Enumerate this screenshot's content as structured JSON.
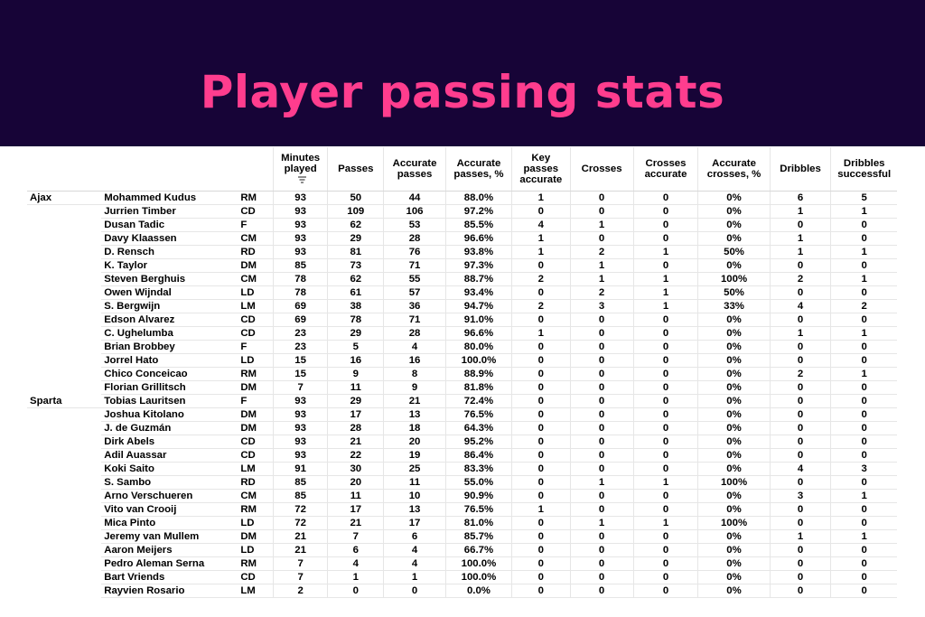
{
  "title": "Player passing stats",
  "chart_data": {
    "type": "table",
    "columns": [
      "Minutes played",
      "Passes",
      "Accurate passes",
      "Accurate passes, %",
      "Key passes accurate",
      "Crosses",
      "Crosses accurate",
      "Accurate crosses, %",
      "Dribbles",
      "Dribbles successful"
    ],
    "header_lines": [
      [
        "Minutes",
        "played"
      ],
      [
        "Passes"
      ],
      [
        "Accurate",
        "passes"
      ],
      [
        "Accurate",
        "passes, %"
      ],
      [
        "Key",
        "passes",
        "accurate"
      ],
      [
        "Crosses"
      ],
      [
        "Crosses",
        "accurate"
      ],
      [
        "Accurate",
        "crosses, %"
      ],
      [
        "Dribbles"
      ],
      [
        "Dribbles",
        "successful"
      ]
    ],
    "sorted_column": "Minutes played",
    "rows": [
      {
        "team": "Ajax",
        "player": "Mohammed Kudus",
        "pos": "RM",
        "values": [
          "93",
          "50",
          "44",
          "88.0%",
          "1",
          "0",
          "0",
          "0%",
          "6",
          "5"
        ]
      },
      {
        "team": "",
        "player": "Jurrien Timber",
        "pos": "CD",
        "values": [
          "93",
          "109",
          "106",
          "97.2%",
          "0",
          "0",
          "0",
          "0%",
          "1",
          "1"
        ]
      },
      {
        "team": "",
        "player": "Dusan Tadic",
        "pos": "F",
        "values": [
          "93",
          "62",
          "53",
          "85.5%",
          "4",
          "1",
          "0",
          "0%",
          "0",
          "0"
        ]
      },
      {
        "team": "",
        "player": "Davy Klaassen",
        "pos": "CM",
        "values": [
          "93",
          "29",
          "28",
          "96.6%",
          "1",
          "0",
          "0",
          "0%",
          "1",
          "0"
        ]
      },
      {
        "team": "",
        "player": "D. Rensch",
        "pos": "RD",
        "values": [
          "93",
          "81",
          "76",
          "93.8%",
          "1",
          "2",
          "1",
          "50%",
          "1",
          "1"
        ]
      },
      {
        "team": "",
        "player": "K. Taylor",
        "pos": "DM",
        "values": [
          "85",
          "73",
          "71",
          "97.3%",
          "0",
          "1",
          "0",
          "0%",
          "0",
          "0"
        ]
      },
      {
        "team": "",
        "player": "Steven Berghuis",
        "pos": "CM",
        "values": [
          "78",
          "62",
          "55",
          "88.7%",
          "2",
          "1",
          "1",
          "100%",
          "2",
          "1"
        ]
      },
      {
        "team": "",
        "player": "Owen Wijndal",
        "pos": "LD",
        "values": [
          "78",
          "61",
          "57",
          "93.4%",
          "0",
          "2",
          "1",
          "50%",
          "0",
          "0"
        ]
      },
      {
        "team": "",
        "player": "S. Bergwijn",
        "pos": "LM",
        "values": [
          "69",
          "38",
          "36",
          "94.7%",
          "2",
          "3",
          "1",
          "33%",
          "4",
          "2"
        ]
      },
      {
        "team": "",
        "player": "Edson Alvarez",
        "pos": "CD",
        "values": [
          "69",
          "78",
          "71",
          "91.0%",
          "0",
          "0",
          "0",
          "0%",
          "0",
          "0"
        ]
      },
      {
        "team": "",
        "player": "C. Ughelumba",
        "pos": "CD",
        "values": [
          "23",
          "29",
          "28",
          "96.6%",
          "1",
          "0",
          "0",
          "0%",
          "1",
          "1"
        ]
      },
      {
        "team": "",
        "player": "Brian Brobbey",
        "pos": "F",
        "values": [
          "23",
          "5",
          "4",
          "80.0%",
          "0",
          "0",
          "0",
          "0%",
          "0",
          "0"
        ]
      },
      {
        "team": "",
        "player": "Jorrel Hato",
        "pos": "LD",
        "values": [
          "15",
          "16",
          "16",
          "100.0%",
          "0",
          "0",
          "0",
          "0%",
          "0",
          "0"
        ]
      },
      {
        "team": "",
        "player": "Chico Conceicao",
        "pos": "RM",
        "values": [
          "15",
          "9",
          "8",
          "88.9%",
          "0",
          "0",
          "0",
          "0%",
          "2",
          "1"
        ]
      },
      {
        "team": "",
        "player": "Florian Grillitsch",
        "pos": "DM",
        "values": [
          "7",
          "11",
          "9",
          "81.8%",
          "0",
          "0",
          "0",
          "0%",
          "0",
          "0"
        ]
      },
      {
        "team": "Sparta",
        "player": "Tobias Lauritsen",
        "pos": "F",
        "values": [
          "93",
          "29",
          "21",
          "72.4%",
          "0",
          "0",
          "0",
          "0%",
          "0",
          "0"
        ]
      },
      {
        "team": "",
        "player": "Joshua Kitolano",
        "pos": "DM",
        "values": [
          "93",
          "17",
          "13",
          "76.5%",
          "0",
          "0",
          "0",
          "0%",
          "0",
          "0"
        ]
      },
      {
        "team": "",
        "player": "J. de Guzmán",
        "pos": "DM",
        "values": [
          "93",
          "28",
          "18",
          "64.3%",
          "0",
          "0",
          "0",
          "0%",
          "0",
          "0"
        ]
      },
      {
        "team": "",
        "player": "Dirk Abels",
        "pos": "CD",
        "values": [
          "93",
          "21",
          "20",
          "95.2%",
          "0",
          "0",
          "0",
          "0%",
          "0",
          "0"
        ]
      },
      {
        "team": "",
        "player": "Adil Auassar",
        "pos": "CD",
        "values": [
          "93",
          "22",
          "19",
          "86.4%",
          "0",
          "0",
          "0",
          "0%",
          "0",
          "0"
        ]
      },
      {
        "team": "",
        "player": "Koki Saito",
        "pos": "LM",
        "values": [
          "91",
          "30",
          "25",
          "83.3%",
          "0",
          "0",
          "0",
          "0%",
          "4",
          "3"
        ]
      },
      {
        "team": "",
        "player": "S. Sambo",
        "pos": "RD",
        "values": [
          "85",
          "20",
          "11",
          "55.0%",
          "0",
          "1",
          "1",
          "100%",
          "0",
          "0"
        ]
      },
      {
        "team": "",
        "player": "Arno Verschueren",
        "pos": "CM",
        "values": [
          "85",
          "11",
          "10",
          "90.9%",
          "0",
          "0",
          "0",
          "0%",
          "3",
          "1"
        ]
      },
      {
        "team": "",
        "player": "Vito van Crooij",
        "pos": "RM",
        "values": [
          "72",
          "17",
          "13",
          "76.5%",
          "1",
          "0",
          "0",
          "0%",
          "0",
          "0"
        ]
      },
      {
        "team": "",
        "player": "Mica Pinto",
        "pos": "LD",
        "values": [
          "72",
          "21",
          "17",
          "81.0%",
          "0",
          "1",
          "1",
          "100%",
          "0",
          "0"
        ]
      },
      {
        "team": "",
        "player": "Jeremy van Mullem",
        "pos": "DM",
        "values": [
          "21",
          "7",
          "6",
          "85.7%",
          "0",
          "0",
          "0",
          "0%",
          "1",
          "1"
        ]
      },
      {
        "team": "",
        "player": "Aaron Meijers",
        "pos": "LD",
        "values": [
          "21",
          "6",
          "4",
          "66.7%",
          "0",
          "0",
          "0",
          "0%",
          "0",
          "0"
        ]
      },
      {
        "team": "",
        "player": "Pedro Aleman Serna",
        "pos": "RM",
        "values": [
          "7",
          "4",
          "4",
          "100.0%",
          "0",
          "0",
          "0",
          "0%",
          "0",
          "0"
        ]
      },
      {
        "team": "",
        "player": "Bart Vriends",
        "pos": "CD",
        "values": [
          "7",
          "1",
          "1",
          "100.0%",
          "0",
          "0",
          "0",
          "0%",
          "0",
          "0"
        ]
      },
      {
        "team": "",
        "player": "Rayvien Rosario",
        "pos": "LM",
        "values": [
          "2",
          "0",
          "0",
          "0.0%",
          "0",
          "0",
          "0",
          "0%",
          "0",
          "0"
        ]
      }
    ]
  }
}
